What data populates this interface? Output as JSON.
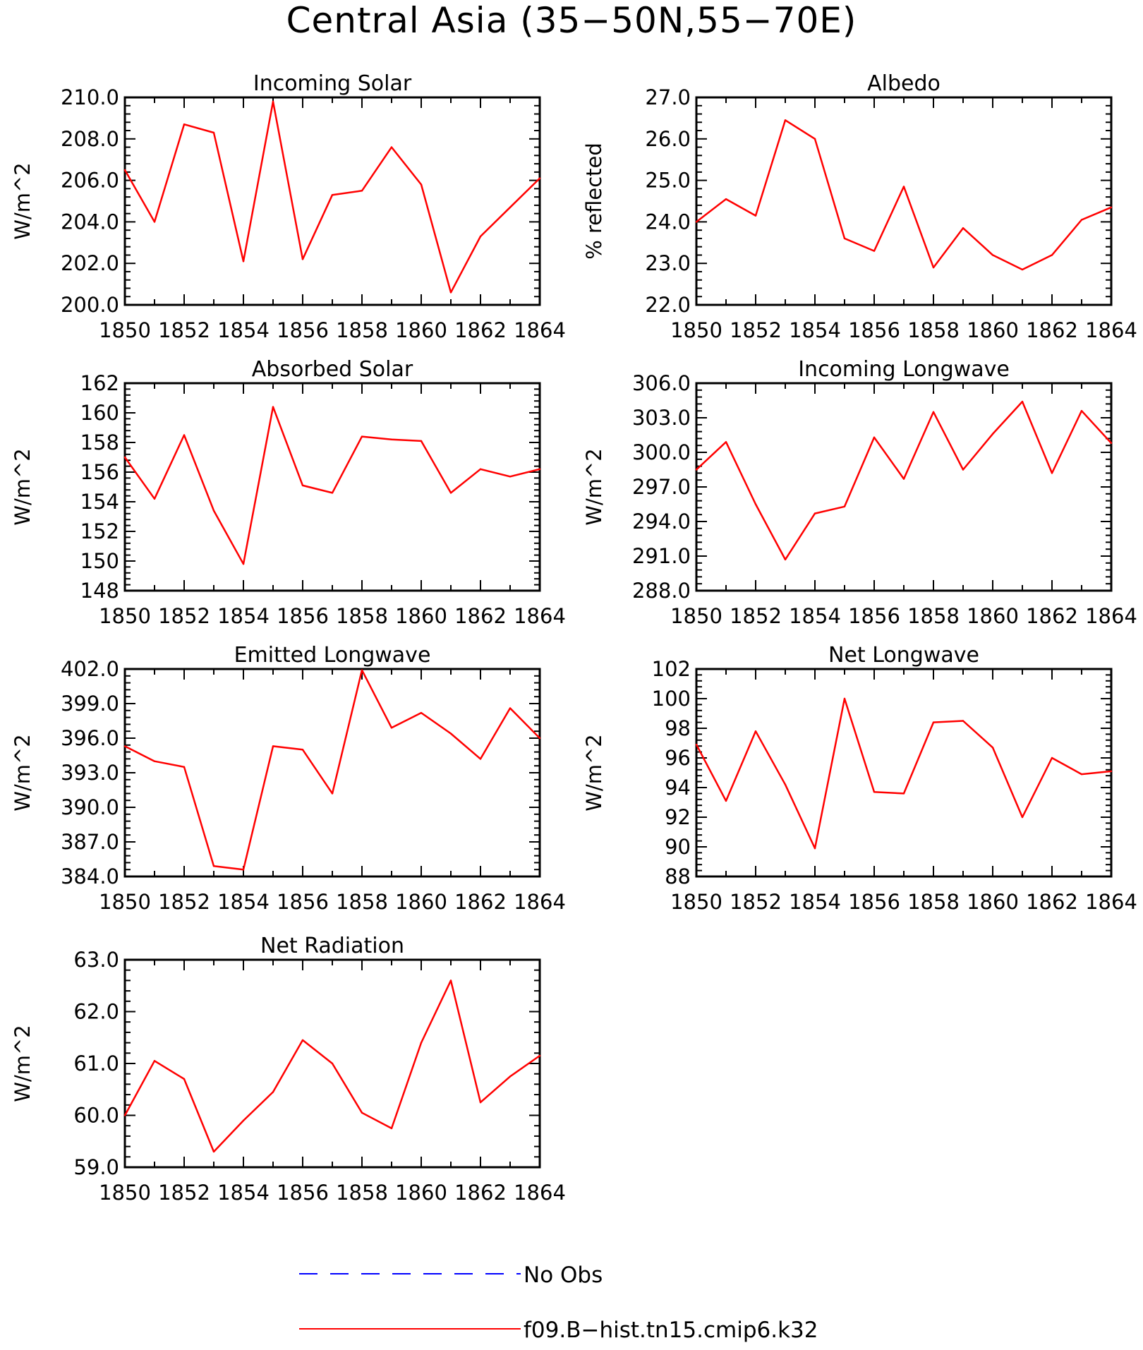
{
  "title": "Central Asia (35−50N,55−70E)",
  "colors": {
    "model_line": "#ff0000",
    "obs_line": "#0000ff",
    "axis": "#000000"
  },
  "legend": {
    "obs_label": "No Obs",
    "model_label": "f09.B−hist.tn15.cmip6.k32"
  },
  "chart_data": [
    {
      "type": "line",
      "title": "Incoming Solar",
      "xlabel": "",
      "ylabel": "W/m^2",
      "xlim": [
        1850,
        1864
      ],
      "ylim": [
        200,
        210
      ],
      "x_ticks": [
        "1850",
        "1852",
        "1854",
        "1856",
        "1858",
        "1860",
        "1862",
        "1864"
      ],
      "y_ticks": [
        "200.0",
        "202.0",
        "204.0",
        "206.0",
        "208.0",
        "210.0"
      ],
      "x": [
        1850,
        1851,
        1852,
        1853,
        1854,
        1855,
        1856,
        1857,
        1858,
        1859,
        1860,
        1861,
        1862,
        1863,
        1864
      ],
      "series": [
        {
          "values": [
            206.5,
            204.0,
            208.7,
            208.3,
            202.1,
            209.8,
            202.2,
            205.3,
            205.5,
            207.6,
            205.8,
            200.6,
            203.3,
            204.7,
            206.1
          ]
        }
      ]
    },
    {
      "type": "line",
      "title": "Albedo",
      "xlabel": "",
      "ylabel": "% reflected",
      "xlim": [
        1850,
        1864
      ],
      "ylim": [
        22,
        27
      ],
      "x_ticks": [
        "1850",
        "1852",
        "1854",
        "1856",
        "1858",
        "1860",
        "1862",
        "1864"
      ],
      "y_ticks": [
        "22.0",
        "23.0",
        "24.0",
        "25.0",
        "26.0",
        "27.0"
      ],
      "x": [
        1850,
        1851,
        1852,
        1853,
        1854,
        1855,
        1856,
        1857,
        1858,
        1859,
        1860,
        1861,
        1862,
        1863,
        1864
      ],
      "series": [
        {
          "values": [
            24.0,
            24.55,
            24.15,
            26.45,
            26.0,
            23.6,
            23.3,
            24.85,
            22.9,
            23.85,
            23.2,
            22.85,
            23.2,
            24.05,
            24.35
          ]
        }
      ]
    },
    {
      "type": "line",
      "title": "Absorbed Solar",
      "xlabel": "",
      "ylabel": "W/m^2",
      "xlim": [
        1850,
        1864
      ],
      "ylim": [
        148,
        162
      ],
      "x_ticks": [
        "1850",
        "1852",
        "1854",
        "1856",
        "1858",
        "1860",
        "1862",
        "1864"
      ],
      "y_ticks": [
        "148",
        "150",
        "152",
        "154",
        "156",
        "158",
        "160",
        "162"
      ],
      "x": [
        1850,
        1851,
        1852,
        1853,
        1854,
        1855,
        1856,
        1857,
        1858,
        1859,
        1860,
        1861,
        1862,
        1863,
        1864
      ],
      "series": [
        {
          "values": [
            157.0,
            154.2,
            158.5,
            153.4,
            149.8,
            160.4,
            155.1,
            154.6,
            158.4,
            158.2,
            158.1,
            154.6,
            156.2,
            155.7,
            156.2
          ]
        }
      ]
    },
    {
      "type": "line",
      "title": "Incoming Longwave",
      "xlabel": "",
      "ylabel": "W/m^2",
      "xlim": [
        1850,
        1864
      ],
      "ylim": [
        288,
        306
      ],
      "x_ticks": [
        "1850",
        "1852",
        "1854",
        "1856",
        "1858",
        "1860",
        "1862",
        "1864"
      ],
      "y_ticks": [
        "288.0",
        "291.0",
        "294.0",
        "297.0",
        "300.0",
        "303.0",
        "306.0"
      ],
      "x": [
        1850,
        1851,
        1852,
        1853,
        1854,
        1855,
        1856,
        1857,
        1858,
        1859,
        1860,
        1861,
        1862,
        1863,
        1864
      ],
      "series": [
        {
          "values": [
            298.5,
            300.9,
            295.5,
            290.7,
            294.7,
            295.3,
            301.3,
            297.7,
            303.5,
            298.5,
            301.6,
            304.4,
            298.2,
            303.6,
            300.8
          ]
        }
      ]
    },
    {
      "type": "line",
      "title": "Emitted Longwave",
      "xlabel": "",
      "ylabel": "W/m^2",
      "xlim": [
        1850,
        1864
      ],
      "ylim": [
        384,
        402
      ],
      "x_ticks": [
        "1850",
        "1852",
        "1854",
        "1856",
        "1858",
        "1860",
        "1862",
        "1864"
      ],
      "y_ticks": [
        "384.0",
        "387.0",
        "390.0",
        "393.0",
        "396.0",
        "399.0",
        "402.0"
      ],
      "x": [
        1850,
        1851,
        1852,
        1853,
        1854,
        1855,
        1856,
        1857,
        1858,
        1859,
        1860,
        1861,
        1862,
        1863,
        1864
      ],
      "series": [
        {
          "values": [
            395.3,
            394.0,
            393.5,
            384.9,
            384.6,
            395.3,
            395.0,
            391.2,
            401.9,
            396.9,
            398.2,
            396.4,
            394.2,
            398.6,
            396.0
          ]
        }
      ]
    },
    {
      "type": "line",
      "title": "Net Longwave",
      "xlabel": "",
      "ylabel": "W/m^2",
      "xlim": [
        1850,
        1864
      ],
      "ylim": [
        88,
        102
      ],
      "x_ticks": [
        "1850",
        "1852",
        "1854",
        "1856",
        "1858",
        "1860",
        "1862",
        "1864"
      ],
      "y_ticks": [
        "88",
        "90",
        "92",
        "94",
        "96",
        "98",
        "100",
        "102"
      ],
      "x": [
        1850,
        1851,
        1852,
        1853,
        1854,
        1855,
        1856,
        1857,
        1858,
        1859,
        1860,
        1861,
        1862,
        1863,
        1864
      ],
      "series": [
        {
          "values": [
            96.9,
            93.1,
            97.8,
            94.2,
            89.9,
            100.0,
            93.7,
            93.6,
            98.4,
            98.5,
            96.7,
            92.0,
            96.0,
            94.9,
            95.1
          ]
        }
      ]
    },
    {
      "type": "line",
      "title": "Net Radiation",
      "xlabel": "",
      "ylabel": "W/m^2",
      "xlim": [
        1850,
        1864
      ],
      "ylim": [
        59,
        63
      ],
      "x_ticks": [
        "1850",
        "1852",
        "1854",
        "1856",
        "1858",
        "1860",
        "1862",
        "1864"
      ],
      "y_ticks": [
        "59.0",
        "60.0",
        "61.0",
        "62.0",
        "63.0"
      ],
      "x": [
        1850,
        1851,
        1852,
        1853,
        1854,
        1855,
        1856,
        1857,
        1858,
        1859,
        1860,
        1861,
        1862,
        1863,
        1864
      ],
      "series": [
        {
          "values": [
            60.0,
            61.05,
            60.7,
            59.3,
            59.9,
            60.45,
            61.45,
            61.0,
            60.05,
            59.75,
            61.4,
            62.6,
            60.25,
            60.75,
            61.15
          ]
        }
      ]
    }
  ]
}
